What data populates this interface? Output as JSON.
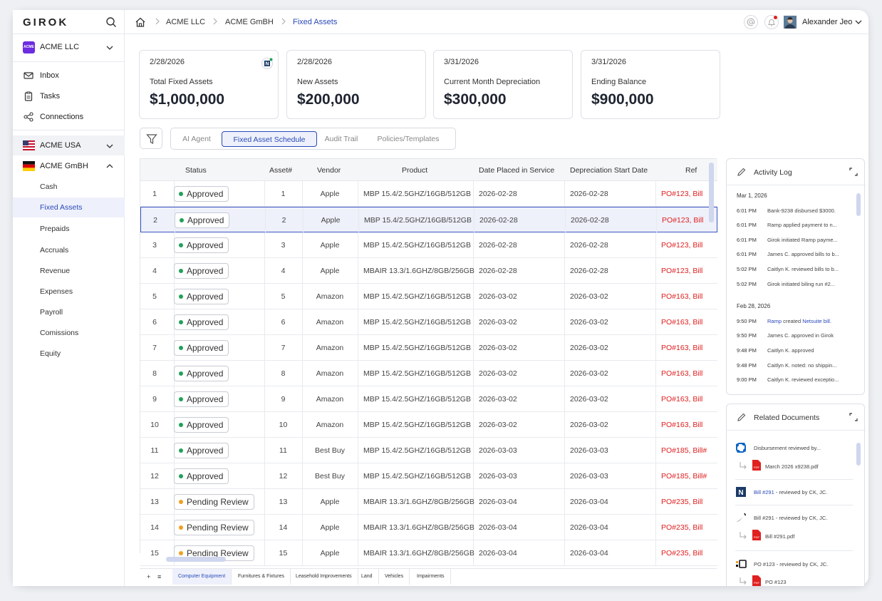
{
  "app": {
    "logo": "GIROK",
    "company": "ACME LLC",
    "company_logo_text": "ACME"
  },
  "sidebar": {
    "nav": [
      {
        "label": "Inbox",
        "icon": "inbox-icon"
      },
      {
        "label": "Tasks",
        "icon": "clipboard-icon"
      },
      {
        "label": "Connections",
        "icon": "share-icon"
      }
    ],
    "entities": [
      {
        "label": "ACME USA",
        "flag": "us"
      },
      {
        "label": "ACME GmBH",
        "flag": "de"
      }
    ],
    "sub_items": [
      "Cash",
      "Fixed Assets",
      "Prepaids",
      "Accruals",
      "Revenue",
      "Expenses",
      "Payroll",
      "Comissions",
      "Equity"
    ],
    "active_sub": "Fixed Assets"
  },
  "breadcrumb": [
    "ACME LLC",
    "ACME GmBH",
    "Fixed Assets"
  ],
  "user": {
    "name": "Alexander Jeo"
  },
  "cards": [
    {
      "date": "2/28/2026",
      "title": "Total Fixed Assets",
      "value": "$1,000,000"
    },
    {
      "date": "2/28/2026",
      "title": "New Assets",
      "value": "$200,000"
    },
    {
      "date": "3/31/2026",
      "title": "Current Month Depreciation",
      "value": "$300,000"
    },
    {
      "date": "3/31/2026",
      "title": "Ending Balance",
      "value": "$900,000"
    }
  ],
  "tabs": [
    "AI Agent",
    "Fixed Asset Schedule",
    "Audit Trail",
    "Policies/Templates"
  ],
  "active_tab": "Fixed Asset Schedule",
  "table": {
    "columns": [
      "Status",
      "Asset#",
      "Vendor",
      "Product",
      "Date Placed in Service",
      "Depreciation Start Date",
      "Ref"
    ],
    "rows": [
      {
        "n": "1",
        "status": "Approved",
        "asset": "1",
        "vendor": "Apple",
        "product": "MBP 15.4/2.5GHZ/16GB/512GB",
        "placed": "2026-02-28",
        "start": "2026-02-28",
        "ref": "PO#123, Bill"
      },
      {
        "n": "2",
        "status": "Approved",
        "asset": "2",
        "vendor": "Apple",
        "product": "MBP 15.4/2.5GHZ/16GB/512GB",
        "placed": "2026-02-28",
        "start": "2026-02-28",
        "ref": "PO#123, Bill"
      },
      {
        "n": "3",
        "status": "Approved",
        "asset": "3",
        "vendor": "Apple",
        "product": "MBP 15.4/2.5GHZ/16GB/512GB",
        "placed": "2026-02-28",
        "start": "2026-02-28",
        "ref": "PO#123, Bill"
      },
      {
        "n": "4",
        "status": "Approved",
        "asset": "4",
        "vendor": "Apple",
        "product": "MBAIR 13.3/1.6GHZ/8GB/256GB",
        "placed": "2026-02-28",
        "start": "2026-02-28",
        "ref": "PO#123, Bill"
      },
      {
        "n": "5",
        "status": "Approved",
        "asset": "5",
        "vendor": "Amazon",
        "product": "MBP 15.4/2.5GHZ/16GB/512GB",
        "placed": "2026-03-02",
        "start": "2026-03-02",
        "ref": "PO#163, Bill"
      },
      {
        "n": "6",
        "status": "Approved",
        "asset": "6",
        "vendor": "Amazon",
        "product": "MBP 15.4/2.5GHZ/16GB/512GB",
        "placed": "2026-03-02",
        "start": "2026-03-02",
        "ref": "PO#163, Bill"
      },
      {
        "n": "7",
        "status": "Approved",
        "asset": "7",
        "vendor": "Amazon",
        "product": "MBP 15.4/2.5GHZ/16GB/512GB",
        "placed": "2026-03-02",
        "start": "2026-03-02",
        "ref": "PO#163, Bill"
      },
      {
        "n": "8",
        "status": "Approved",
        "asset": "8",
        "vendor": "Amazon",
        "product": "MBP 15.4/2.5GHZ/16GB/512GB",
        "placed": "2026-03-02",
        "start": "2026-03-02",
        "ref": "PO#163, Bill"
      },
      {
        "n": "9",
        "status": "Approved",
        "asset": "9",
        "vendor": "Amazon",
        "product": "MBP 15.4/2.5GHZ/16GB/512GB",
        "placed": "2026-03-02",
        "start": "2026-03-02",
        "ref": "PO#163, Bill"
      },
      {
        "n": "10",
        "status": "Approved",
        "asset": "10",
        "vendor": "Amazon",
        "product": "MBP 15.4/2.5GHZ/16GB/512GB",
        "placed": "2026-03-02",
        "start": "2026-03-02",
        "ref": "PO#163, Bill"
      },
      {
        "n": "11",
        "status": "Approved",
        "asset": "11",
        "vendor": "Best Buy",
        "product": "MBP 15.4/2.5GHZ/16GB/512GB",
        "placed": "2026-03-03",
        "start": "2026-03-03",
        "ref": "PO#185, Bill#"
      },
      {
        "n": "12",
        "status": "Approved",
        "asset": "12",
        "vendor": "Best Buy",
        "product": "MBP 15.4/2.5GHZ/16GB/512GB",
        "placed": "2026-03-03",
        "start": "2026-03-03",
        "ref": "PO#185, Bill#"
      },
      {
        "n": "13",
        "status": "Pending Review",
        "asset": "13",
        "vendor": "Apple",
        "product": "MBAIR 13.3/1.6GHZ/8GB/256GB",
        "placed": "2026-03-04",
        "start": "2026-03-04",
        "ref": "PO#235, Bill"
      },
      {
        "n": "14",
        "status": "Pending Review",
        "asset": "14",
        "vendor": "Apple",
        "product": "MBAIR 13.3/1.6GHZ/8GB/256GB",
        "placed": "2026-03-04",
        "start": "2026-03-04",
        "ref": "PO#235, Bill"
      },
      {
        "n": "15",
        "status": "Pending Review",
        "asset": "15",
        "vendor": "Apple",
        "product": "MBAIR 13.3/1.6GHZ/8GB/256GB",
        "placed": "2026-03-04",
        "start": "2026-03-04",
        "ref": "PO#235, Bill"
      }
    ],
    "selected_row": "2"
  },
  "sheet_tabs": [
    "Computer Equipment",
    "Furnitures & Fixtures",
    "Leasehold Improvements",
    "Land",
    "Vehicles",
    "Impairments"
  ],
  "sheet_controls": {
    "add": "+",
    "menu": "≡"
  },
  "activity_log": {
    "title": "Activity Log",
    "groups": [
      {
        "date": "Mar 1, 2026",
        "entries": [
          {
            "time": "6:01 PM",
            "text": "Bank-9238 disbursed $3000."
          },
          {
            "time": "6:01 PM",
            "text": "Ramp applied payment to n..."
          },
          {
            "time": "6:01 PM",
            "text": "Girok initiated Ramp payme..."
          },
          {
            "time": "6:01 PM",
            "text": "James C. approved bills to b..."
          },
          {
            "time": "5:02 PM",
            "text": "Caitlyn K. reviewed bills to b..."
          },
          {
            "time": "5:02 PM",
            "text": "Girok initiated biling run #2..."
          }
        ]
      },
      {
        "date": "Feb 28, 2026",
        "entries": [
          {
            "time": "9:50 PM",
            "link1": "Ramp",
            "mid": " created ",
            "link2": "Netsuite bill."
          },
          {
            "time": "9:50 PM",
            "text": "James C. approved in Girok"
          },
          {
            "time": "9:48 PM",
            "text": "Caitlyn K. approved"
          },
          {
            "time": "9:48 PM",
            "text": "Caitlyn K. noted: no shippin..."
          },
          {
            "time": "9:00 PM",
            "text": "Caitlyn K. reviewed exceptio..."
          }
        ]
      }
    ]
  },
  "related_docs": {
    "title": "Related Documents",
    "items": [
      {
        "text": "Disbursement reviewed by...",
        "file": "March 2026 x9238.pdf"
      },
      {
        "link": "Bill #291",
        "text": " - reviewed by CK, JC."
      },
      {
        "text": "Bill #291 - reviewed by CK, JC.",
        "file": "Bill #291.pdf"
      },
      {
        "text": "PO #123 - reviewed by CK, JC.",
        "file": "PO #123"
      }
    ]
  },
  "colors": {
    "accent": "#2a49b8",
    "approved": "#22a05a",
    "pending": "#f0a020",
    "ref": "#e02020"
  }
}
